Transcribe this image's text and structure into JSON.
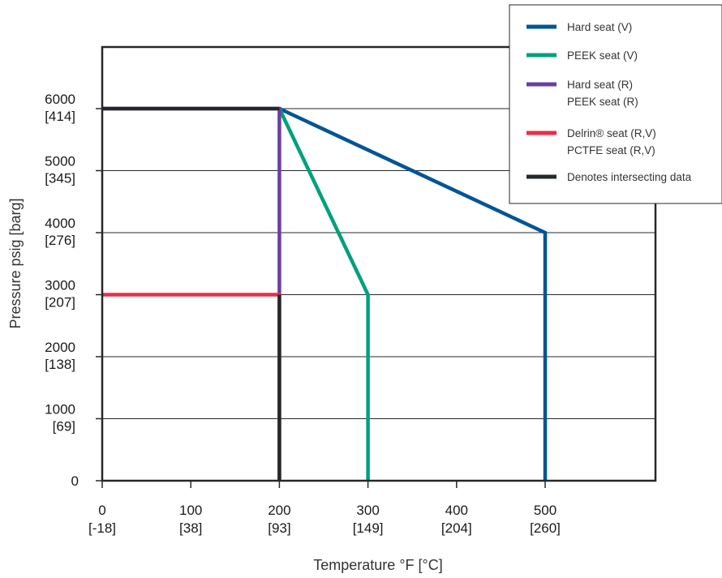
{
  "chart_data": {
    "type": "line",
    "xlabel": "Temperature °F [°C]",
    "ylabel": "Pressure psig [barg]",
    "xlim": [
      0,
      625
    ],
    "ylim": [
      0,
      7000
    ],
    "grid": true,
    "x_ticks": [
      {
        "value": 0,
        "label": "0",
        "sub": "[-18]"
      },
      {
        "value": 100,
        "label": "100",
        "sub": "[38]"
      },
      {
        "value": 200,
        "label": "200",
        "sub": "[93]"
      },
      {
        "value": 300,
        "label": "300",
        "sub": "[149]"
      },
      {
        "value": 400,
        "label": "400",
        "sub": "[204]"
      },
      {
        "value": 500,
        "label": "500",
        "sub": "[260]"
      }
    ],
    "y_ticks": [
      {
        "value": 0,
        "label": "0",
        "sub": ""
      },
      {
        "value": 1000,
        "label": "1000",
        "sub": "[69]"
      },
      {
        "value": 2000,
        "label": "2000",
        "sub": "[138]"
      },
      {
        "value": 3000,
        "label": "3000",
        "sub": "[207]"
      },
      {
        "value": 4000,
        "label": "4000",
        "sub": "[276]"
      },
      {
        "value": 5000,
        "label": "5000",
        "sub": "[345]"
      },
      {
        "value": 6000,
        "label": "6000",
        "sub": "[414]"
      }
    ],
    "legend_position": "top-right",
    "series": [
      {
        "key": "hard-v",
        "name": "Hard seat (V)",
        "color": "#005596",
        "points": [
          [
            200,
            6000
          ],
          [
            500,
            4000
          ],
          [
            500,
            0
          ]
        ]
      },
      {
        "key": "peek-v",
        "name": "PEEK seat (V)",
        "color": "#00a07e",
        "points": [
          [
            200,
            6000
          ],
          [
            300,
            3000
          ],
          [
            300,
            0
          ]
        ]
      },
      {
        "key": "hard-peek-r",
        "name": "Hard seat (R)\nPEEK seat (R)",
        "color": "#6a3fa0",
        "points": [
          [
            0,
            6000
          ],
          [
            200,
            6000
          ],
          [
            200,
            3000
          ]
        ]
      },
      {
        "key": "delrin-pctfe",
        "name": "Delrin® seat (R,V)\nPCTFE seat (R,V)",
        "color": "#ee2b47",
        "points": [
          [
            0,
            3000
          ],
          [
            200,
            3000
          ],
          [
            200,
            0
          ]
        ]
      },
      {
        "key": "intersecting",
        "name": "Denotes intersecting data",
        "color": "#25282a",
        "points": [
          [
            0,
            6000
          ],
          [
            200,
            6000
          ]
        ],
        "extra_segments": [
          [
            [
              200,
              3000
            ],
            [
              200,
              0
            ]
          ]
        ]
      }
    ]
  }
}
